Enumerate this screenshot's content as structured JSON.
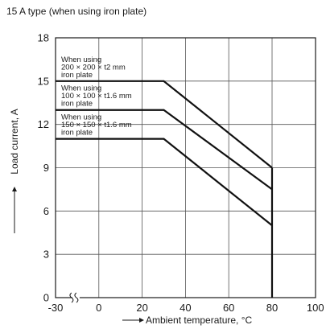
{
  "chart_data": {
    "type": "line",
    "title": "15 A type (when using iron plate)",
    "xlabel": "Ambient temperature, °C",
    "ylabel": "Load current, A",
    "xticks": [
      "-30",
      "0",
      "20",
      "40",
      "60",
      "80",
      "100"
    ],
    "yticks": [
      "0",
      "3",
      "6",
      "9",
      "12",
      "15",
      "18"
    ],
    "xlim": [
      -30,
      100
    ],
    "ylim": [
      0,
      18
    ],
    "x_axis_break_between": [
      -30,
      0
    ],
    "grid": true,
    "series": [
      {
        "label_lines": [
          "When using",
          "200 × 200 × t2 mm",
          "iron plate"
        ],
        "points": [
          [
            -30,
            15
          ],
          [
            30,
            15
          ],
          [
            80,
            9
          ]
        ]
      },
      {
        "label_lines": [
          "When using",
          "100 × 100 × t1.6 mm",
          "iron plate"
        ],
        "points": [
          [
            -30,
            13
          ],
          [
            30,
            13
          ],
          [
            80,
            7.5
          ]
        ]
      },
      {
        "label_lines": [
          "When using",
          "150 × 150 × t1.6 mm",
          "iron plate"
        ],
        "points": [
          [
            -30,
            11
          ],
          [
            30,
            11
          ],
          [
            80,
            5
          ]
        ]
      }
    ],
    "cutoff": {
      "x": 80,
      "y_from": 0,
      "y_to": 9
    },
    "colors": {
      "line": "#111111",
      "grid": "#555555",
      "text": "#1a1a1a"
    }
  }
}
